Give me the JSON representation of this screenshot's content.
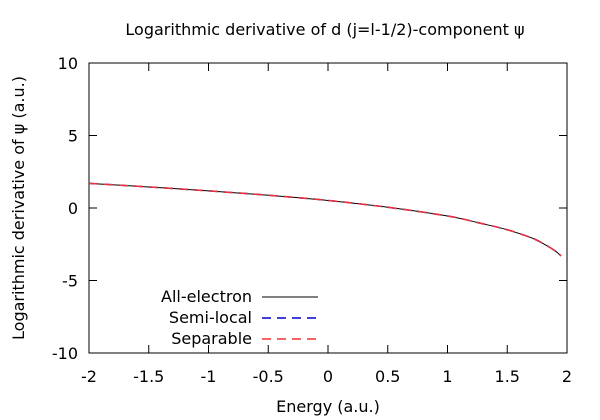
{
  "chart_data": {
    "type": "line",
    "title": "Logarithmic derivative of d (j=l-1/2)-component ψ",
    "xlabel": "Energy (a.u.)",
    "ylabel": "Logarithmic derivative of ψ (a.u.)",
    "xlim": [
      -2,
      2
    ],
    "ylim": [
      -10,
      10
    ],
    "xticks": [
      "-2",
      "-1.5",
      "-1",
      "-0.5",
      "0",
      "0.5",
      "1",
      "1.5",
      "2"
    ],
    "yticks": [
      "10",
      "5",
      "0",
      "-5",
      "-10"
    ],
    "grid": false,
    "legend_position": "bottom-left",
    "series": [
      {
        "name": "All-electron",
        "color": "#000000",
        "style": "solid",
        "x": [
          -2.0,
          -1.5,
          -1.0,
          -0.5,
          0.0,
          0.5,
          1.0,
          1.25,
          1.5,
          1.7,
          1.8,
          1.9,
          1.95
        ],
        "y": [
          1.7,
          1.45,
          1.18,
          0.88,
          0.52,
          0.05,
          -0.55,
          -1.0,
          -1.5,
          -2.05,
          -2.45,
          -2.95,
          -3.3
        ]
      },
      {
        "name": "Semi-local",
        "color": "#0000cc",
        "style": "dashed",
        "x": [
          -2.0,
          -1.5,
          -1.0,
          -0.5,
          0.0,
          0.5,
          1.0,
          1.25,
          1.5,
          1.7,
          1.8,
          1.9,
          1.95
        ],
        "y": [
          1.7,
          1.45,
          1.18,
          0.88,
          0.52,
          0.05,
          -0.55,
          -1.0,
          -1.5,
          -2.05,
          -2.45,
          -2.95,
          -3.3
        ]
      },
      {
        "name": "Separable",
        "color": "#ee3333",
        "style": "dashed",
        "x": [
          -2.0,
          -1.5,
          -1.0,
          -0.5,
          0.0,
          0.5,
          1.0,
          1.25,
          1.5,
          1.7,
          1.8,
          1.9,
          1.95
        ],
        "y": [
          1.7,
          1.45,
          1.18,
          0.88,
          0.52,
          0.05,
          -0.55,
          -1.0,
          -1.5,
          -2.05,
          -2.45,
          -2.95,
          -3.3
        ]
      }
    ]
  }
}
